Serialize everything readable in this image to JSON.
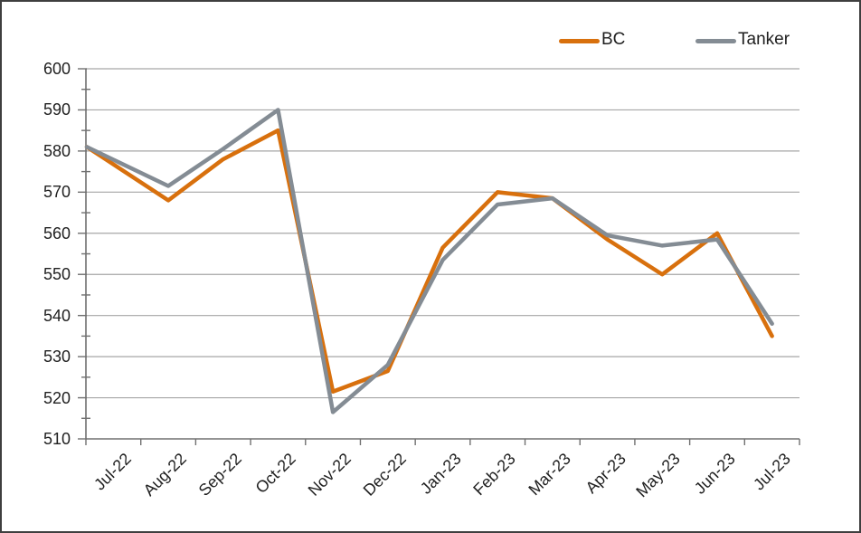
{
  "chart_data": {
    "type": "line",
    "categories": [
      "Jul-22",
      "Aug-22",
      "Sep-22",
      "Oct-22",
      "Nov-22",
      "Dec-22",
      "Jan-23",
      "Feb-23",
      "Mar-23",
      "Apr-23",
      "May-23",
      "Jun-23",
      "Jul-23"
    ],
    "series": [
      {
        "name": "BC",
        "color": "#d8700d",
        "values": [
          581,
          568,
          578,
          585,
          521.5,
          526.5,
          556.5,
          570,
          568.5,
          558.5,
          550,
          560,
          535
        ]
      },
      {
        "name": "Tanker",
        "color": "#848c94",
        "values": [
          581,
          571.5,
          580.5,
          590,
          516.5,
          528,
          553.5,
          567,
          568.5,
          559.5,
          557,
          558.5,
          538
        ]
      }
    ],
    "ylim": [
      510,
      600
    ],
    "y_tick_step": 10,
    "y_minor_tick_step": 5,
    "y_tick_labels": [
      "600",
      "590",
      "580",
      "570",
      "560",
      "550",
      "540",
      "530",
      "520",
      "510"
    ],
    "grid": "horizontal",
    "legend_position": "top-right",
    "colors": {
      "gridline": "#a6a6a6",
      "axis": "#707070",
      "text": "#1f1f1f",
      "frame_border": "#3f3f3f"
    }
  }
}
